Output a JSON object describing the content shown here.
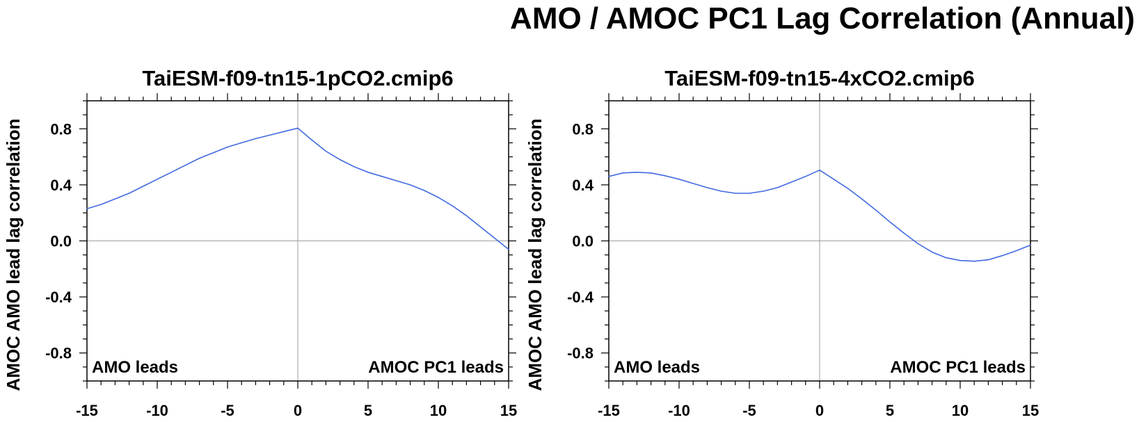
{
  "title": "AMO / AMOC PC1 Lag Correlation (Annual)",
  "colors": {
    "line": "#4169e1",
    "zero_line": "#9e9e9e",
    "axis": "#000000"
  },
  "chart_data": [
    {
      "type": "line",
      "title": "TaiESM-f09-tn15-1pCO2.cmip6",
      "ylabel": "AMOC AMO lead lag correlation",
      "xlabel": "",
      "xlim": [
        -15,
        15
      ],
      "ylim": [
        -1.0,
        1.0
      ],
      "xticks": [
        "-15",
        "-10",
        "-5",
        "0",
        "5",
        "10",
        "15"
      ],
      "yticks": [
        "0.8",
        "0.4",
        "0.0",
        "-0.4",
        "-0.8"
      ],
      "annotations": {
        "left": "AMO leads",
        "right": "AMOC PC1 leads"
      },
      "grid": false,
      "x": [
        -15,
        -14,
        -13,
        -12,
        -11,
        -10,
        -9,
        -8,
        -7,
        -6,
        -5,
        -4,
        -3,
        -2,
        -1,
        0,
        1,
        2,
        3,
        4,
        5,
        6,
        7,
        8,
        9,
        10,
        11,
        12,
        13,
        14,
        15
      ],
      "series": [
        {
          "values": [
            0.23,
            0.26,
            0.3,
            0.34,
            0.39,
            0.44,
            0.49,
            0.54,
            0.59,
            0.63,
            0.67,
            0.7,
            0.73,
            0.755,
            0.78,
            0.805,
            0.72,
            0.64,
            0.58,
            0.53,
            0.49,
            0.46,
            0.43,
            0.4,
            0.36,
            0.31,
            0.25,
            0.18,
            0.1,
            0.02,
            -0.06
          ]
        }
      ]
    },
    {
      "type": "line",
      "title": "TaiESM-f09-tn15-4xCO2.cmip6",
      "ylabel": "AMOC AMO lead lag correlation",
      "xlabel": "",
      "xlim": [
        -15,
        15
      ],
      "ylim": [
        -1.0,
        1.0
      ],
      "xticks": [
        "-15",
        "-10",
        "-5",
        "0",
        "5",
        "10",
        "15"
      ],
      "yticks": [
        "0.8",
        "0.4",
        "0.0",
        "-0.4",
        "-0.8"
      ],
      "annotations": {
        "left": "AMO leads",
        "right": "AMOC PC1 leads"
      },
      "grid": false,
      "x": [
        -15,
        -14,
        -13,
        -12,
        -11,
        -10,
        -9,
        -8,
        -7,
        -6,
        -5,
        -4,
        -3,
        -2,
        -1,
        0,
        1,
        2,
        3,
        4,
        5,
        6,
        7,
        8,
        9,
        10,
        11,
        12,
        13,
        14,
        15
      ],
      "series": [
        {
          "values": [
            0.46,
            0.485,
            0.49,
            0.485,
            0.465,
            0.44,
            0.41,
            0.38,
            0.355,
            0.34,
            0.34,
            0.355,
            0.38,
            0.42,
            0.46,
            0.505,
            0.44,
            0.375,
            0.3,
            0.22,
            0.135,
            0.055,
            -0.02,
            -0.08,
            -0.12,
            -0.14,
            -0.145,
            -0.135,
            -0.105,
            -0.07,
            -0.03
          ]
        }
      ]
    }
  ]
}
